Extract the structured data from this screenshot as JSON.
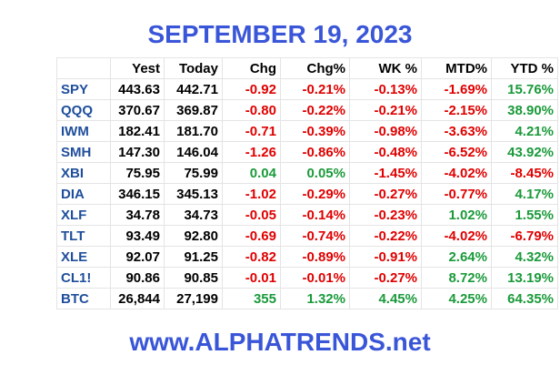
{
  "header": {
    "title": "SEPTEMBER 19, 2023"
  },
  "table": {
    "columns": [
      "Yest",
      "Today",
      "Chg",
      "Chg%",
      "WK %",
      "MTD%",
      "YTD %"
    ],
    "rows": [
      [
        "SPY",
        "443.63",
        "442.71",
        "-0.92",
        "-0.21%",
        "-0.13%",
        "-1.69%",
        "15.76%"
      ],
      [
        "QQQ",
        "370.67",
        "369.87",
        "-0.80",
        "-0.22%",
        "-0.21%",
        "-2.15%",
        "38.90%"
      ],
      [
        "IWM",
        "182.41",
        "181.70",
        "-0.71",
        "-0.39%",
        "-0.98%",
        "-3.63%",
        "4.21%"
      ],
      [
        "SMH",
        "147.30",
        "146.04",
        "-1.26",
        "-0.86%",
        "-0.48%",
        "-6.52%",
        "43.92%"
      ],
      [
        "XBI",
        "75.95",
        "75.99",
        "0.04",
        "0.05%",
        "-1.45%",
        "-4.02%",
        "-8.45%"
      ],
      [
        "DIA",
        "346.15",
        "345.13",
        "-1.02",
        "-0.29%",
        "-0.27%",
        "-0.77%",
        "4.17%"
      ],
      [
        "XLF",
        "34.78",
        "34.73",
        "-0.05",
        "-0.14%",
        "-0.23%",
        "1.02%",
        "1.55%"
      ],
      [
        "TLT",
        "93.49",
        "92.80",
        "-0.69",
        "-0.74%",
        "-0.22%",
        "-4.02%",
        "-6.79%"
      ],
      [
        "XLE",
        "92.07",
        "91.25",
        "-0.82",
        "-0.89%",
        "-0.91%",
        "2.64%",
        "4.32%"
      ],
      [
        "CL1!",
        "90.86",
        "90.85",
        "-0.01",
        "-0.01%",
        "-0.27%",
        "8.72%",
        "13.19%"
      ],
      [
        "BTC",
        "26,844",
        "27,199",
        "355",
        "1.32%",
        "4.45%",
        "4.25%",
        "64.35%"
      ]
    ]
  },
  "footer": {
    "text": "www.ALPHATRENDS.net"
  }
}
